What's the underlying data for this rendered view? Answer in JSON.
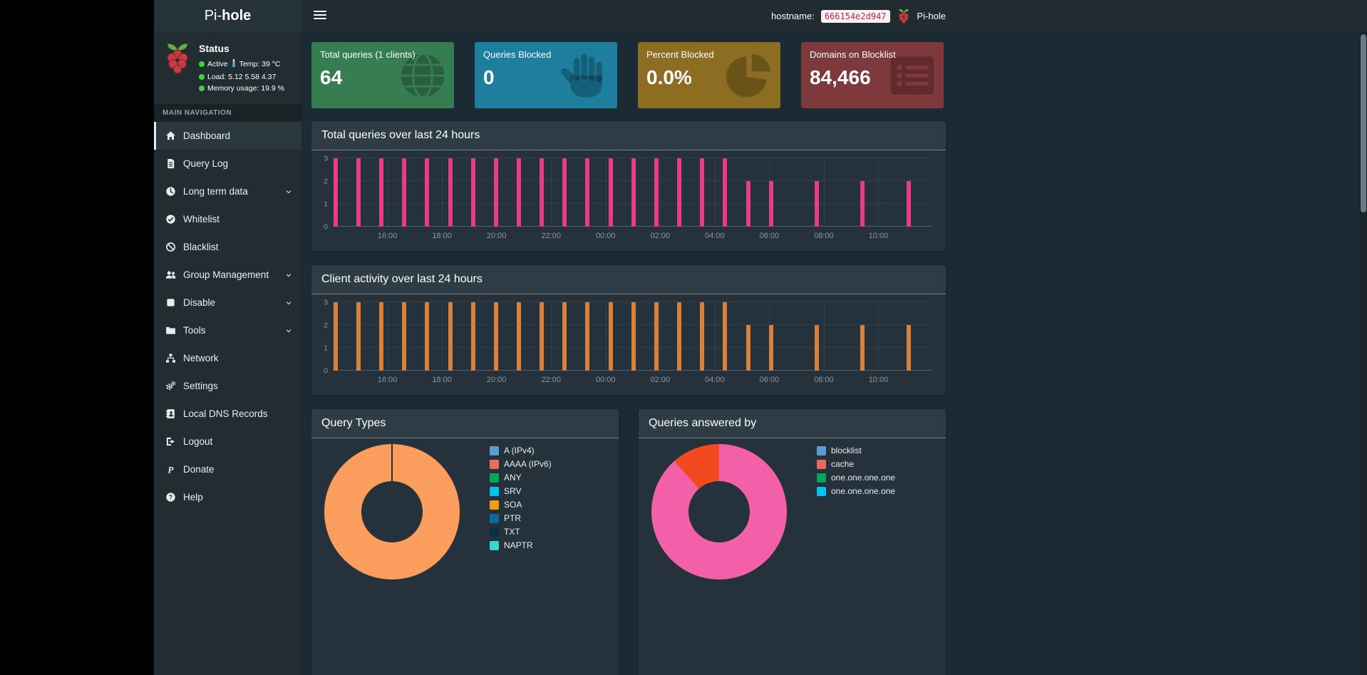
{
  "navbar": {
    "brand_prefix": "Pi-",
    "brand_bold": "hole",
    "hostname_label": "hostname:",
    "hostname_value": "666154e2d947",
    "account_label": "Pi-hole"
  },
  "sidebar": {
    "status_title": "Status",
    "status": {
      "active": "Active",
      "temp": "Temp: 39 °C",
      "load": "Load:  5.12  5.58  4.37",
      "memory": "Memory usage:  19.9 %"
    },
    "section_label": "MAIN NAVIGATION",
    "items": [
      {
        "label": "Dashboard",
        "icon": "home",
        "active": true
      },
      {
        "label": "Query Log",
        "icon": "file-list"
      },
      {
        "label": "Long term data",
        "icon": "clock",
        "chevron": true
      },
      {
        "label": "Whitelist",
        "icon": "check-circle"
      },
      {
        "label": "Blacklist",
        "icon": "ban"
      },
      {
        "label": "Group Management",
        "icon": "users",
        "chevron": true
      },
      {
        "label": "Disable",
        "icon": "stop",
        "chevron": true
      },
      {
        "label": "Tools",
        "icon": "folder",
        "chevron": true
      },
      {
        "label": "Network",
        "icon": "network"
      },
      {
        "label": "Settings",
        "icon": "gears"
      },
      {
        "label": "Local DNS Records",
        "icon": "address-book"
      },
      {
        "label": "Logout",
        "icon": "sign-out"
      },
      {
        "label": "Donate",
        "icon": "paypal"
      },
      {
        "label": "Help",
        "icon": "question-circle"
      }
    ]
  },
  "cards": [
    {
      "title": "Total queries (1 clients)",
      "value": "64",
      "color": "#377d52",
      "icon": "globe"
    },
    {
      "title": "Queries Blocked",
      "value": "0",
      "color": "#1d7e9e",
      "icon": "hand-paper"
    },
    {
      "title": "Percent Blocked",
      "value": "0.0%",
      "color": "#8c6d21",
      "icon": "chart-pie"
    },
    {
      "title": "Domains on Blocklist",
      "value": "84,466",
      "color": "#7d393c",
      "icon": "list-alt"
    }
  ],
  "chart_data": [
    {
      "type": "bar",
      "title": "Total queries over last 24 hours",
      "x_start": "14:00",
      "x_span_hours": 22,
      "tick_offset_hours": 2,
      "tick_step_hours": 2,
      "bar_offset_hours": 0.1,
      "bar_step_hours": 0.84,
      "x_ticks": [
        "16:00",
        "18:00",
        "20:00",
        "22:00",
        "00:00",
        "02:00",
        "04:00",
        "06:00",
        "08:00",
        "10:00"
      ],
      "values": [
        3,
        3,
        3,
        3,
        3,
        3,
        3,
        3,
        3,
        3,
        3,
        3,
        3,
        3,
        3,
        3,
        3,
        3,
        2,
        2,
        0,
        2,
        0,
        2,
        0,
        2
      ],
      "ylim": [
        0,
        3
      ],
      "yticks": [
        0,
        1,
        2,
        3
      ],
      "bar_color": "#ea3a8c",
      "grid": true,
      "legend_position": "none"
    },
    {
      "type": "bar",
      "title": "Client activity over last 24 hours",
      "x_start": "14:00",
      "x_span_hours": 22,
      "tick_offset_hours": 2,
      "tick_step_hours": 2,
      "bar_offset_hours": 0.1,
      "bar_step_hours": 0.84,
      "x_ticks": [
        "16:00",
        "18:00",
        "20:00",
        "22:00",
        "00:00",
        "02:00",
        "04:00",
        "06:00",
        "08:00",
        "10:00"
      ],
      "values": [
        3,
        3,
        3,
        3,
        3,
        3,
        3,
        3,
        3,
        3,
        3,
        3,
        3,
        3,
        3,
        3,
        3,
        3,
        2,
        2,
        0,
        2,
        0,
        2,
        0,
        2
      ],
      "ylim": [
        0,
        3
      ],
      "yticks": [
        0,
        1,
        2,
        3
      ],
      "bar_color": "#d9813c",
      "grid": true,
      "legend_position": "none"
    },
    {
      "type": "doughnut",
      "title": "Query Types",
      "slices": [
        {
          "label": "A (IPv4)",
          "pct": 100,
          "color": "#fb9d5c"
        }
      ],
      "legend": [
        {
          "label": "A (IPv4)",
          "color": "#5d9cd3"
        },
        {
          "label": "AAAA (IPv6)",
          "color": "#ef6a5e"
        },
        {
          "label": "ANY",
          "color": "#00a65a"
        },
        {
          "label": "SRV",
          "color": "#00c0ef"
        },
        {
          "label": "SOA",
          "color": "#f39c12"
        },
        {
          "label": "PTR",
          "color": "#0a6aa1"
        },
        {
          "label": "TXT",
          "color": "#0c2e4e"
        },
        {
          "label": "NAPTR",
          "color": "#3ad6c6"
        }
      ],
      "legend_position": "right"
    },
    {
      "type": "doughnut",
      "title": "Queries answered by",
      "slices": [
        {
          "label": "one.one.one.one",
          "pct": 88.5,
          "color": "#f45fa9"
        },
        {
          "label": "cache",
          "pct": 11.5,
          "color": "#f2491f"
        }
      ],
      "legend": [
        {
          "label": "blocklist",
          "color": "#5d9cd3"
        },
        {
          "label": "cache",
          "color": "#ef6a5e"
        },
        {
          "label": "one.one.one.one",
          "color": "#00a65a"
        },
        {
          "label": "one.one.one.one",
          "color": "#00c0ef"
        }
      ],
      "legend_position": "right"
    }
  ]
}
